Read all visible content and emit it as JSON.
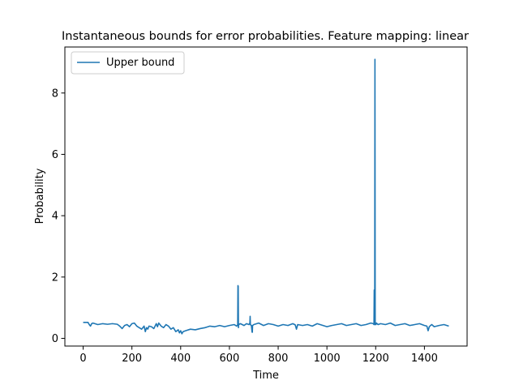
{
  "chart_data": {
    "type": "line",
    "title": "Instantaneous bounds for error probabilities. Feature mapping: linear",
    "xlabel": "Time",
    "ylabel": "Probability",
    "xlim": [
      -75,
      1575
    ],
    "ylim": [
      -0.25,
      9.5
    ],
    "xticks": [
      0,
      200,
      400,
      600,
      800,
      1000,
      1200,
      1400
    ],
    "yticks": [
      0,
      2,
      4,
      6,
      8
    ],
    "legend": {
      "placement": "top-left"
    },
    "grid": false,
    "series": [
      {
        "name": "Upper bound",
        "color": "#1f77b4",
        "x": [
          0,
          20,
          25,
          30,
          35,
          40,
          60,
          80,
          100,
          120,
          140,
          150,
          160,
          170,
          180,
          190,
          200,
          210,
          220,
          230,
          240,
          250,
          255,
          260,
          265,
          270,
          280,
          290,
          300,
          305,
          310,
          320,
          330,
          340,
          350,
          360,
          370,
          380,
          390,
          395,
          400,
          405,
          410,
          420,
          440,
          460,
          480,
          500,
          520,
          540,
          560,
          580,
          600,
          620,
          630,
          634,
          635,
          636,
          637,
          638,
          645,
          660,
          670,
          680,
          684,
          685,
          686,
          690,
          693,
          694,
          695,
          700,
          720,
          740,
          760,
          780,
          800,
          820,
          840,
          860,
          870,
          875,
          880,
          900,
          920,
          940,
          960,
          980,
          1000,
          1020,
          1040,
          1060,
          1080,
          1100,
          1120,
          1140,
          1160,
          1180,
          1190,
          1193,
          1194,
          1195,
          1196,
          1197,
          1198,
          1199,
          1200,
          1201,
          1202,
          1203,
          1210,
          1220,
          1240,
          1260,
          1280,
          1300,
          1320,
          1340,
          1360,
          1380,
          1400,
          1410,
          1415,
          1420,
          1425,
          1430,
          1440,
          1460,
          1480,
          1500
        ],
        "values": [
          0.52,
          0.52,
          0.45,
          0.4,
          0.48,
          0.5,
          0.45,
          0.48,
          0.46,
          0.48,
          0.46,
          0.4,
          0.32,
          0.42,
          0.45,
          0.38,
          0.48,
          0.5,
          0.4,
          0.35,
          0.3,
          0.4,
          0.22,
          0.35,
          0.3,
          0.4,
          0.38,
          0.32,
          0.48,
          0.38,
          0.5,
          0.4,
          0.35,
          0.45,
          0.4,
          0.3,
          0.35,
          0.22,
          0.28,
          0.18,
          0.25,
          0.15,
          0.22,
          0.25,
          0.3,
          0.28,
          0.32,
          0.35,
          0.4,
          0.38,
          0.42,
          0.38,
          0.42,
          0.45,
          0.4,
          0.45,
          1.72,
          1.7,
          0.35,
          0.45,
          0.48,
          0.42,
          0.48,
          0.45,
          0.5,
          0.72,
          0.45,
          0.42,
          0.2,
          0.2,
          0.42,
          0.45,
          0.5,
          0.42,
          0.48,
          0.45,
          0.4,
          0.45,
          0.42,
          0.48,
          0.44,
          0.3,
          0.45,
          0.42,
          0.45,
          0.4,
          0.48,
          0.43,
          0.38,
          0.42,
          0.45,
          0.48,
          0.42,
          0.45,
          0.48,
          0.42,
          0.45,
          0.5,
          0.48,
          0.45,
          1.58,
          0.45,
          0.5,
          9.1,
          0.45,
          0.48,
          0.5,
          0.45,
          0.48,
          0.5,
          0.45,
          0.48,
          0.45,
          0.5,
          0.42,
          0.45,
          0.48,
          0.42,
          0.45,
          0.48,
          0.42,
          0.4,
          0.25,
          0.38,
          0.42,
          0.45,
          0.38,
          0.42,
          0.45,
          0.4
        ]
      }
    ]
  }
}
